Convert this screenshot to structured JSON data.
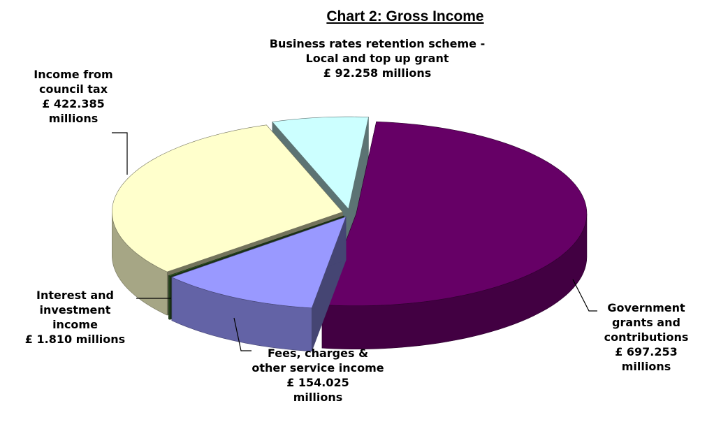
{
  "chart_data": {
    "type": "pie",
    "title": "Chart 2: Gross Income",
    "categories": [
      "Government grants and contributions",
      "Fees, charges & other service income",
      "Interest and investment income",
      "Income from council tax",
      "Business rates retention scheme - Local and top up grant"
    ],
    "values": [
      697.253,
      154.025,
      1.81,
      422.385,
      92.258
    ],
    "value_labels": [
      "£ 697.253 millions",
      "£ 154.025 millions",
      "£ 1.810 millions",
      "£ 422.385 millions",
      "£ 92.258 millions"
    ],
    "colors": [
      "#660066",
      "#9999ff",
      "#3a6b2e",
      "#ffffcc",
      "#ccffff"
    ]
  }
}
